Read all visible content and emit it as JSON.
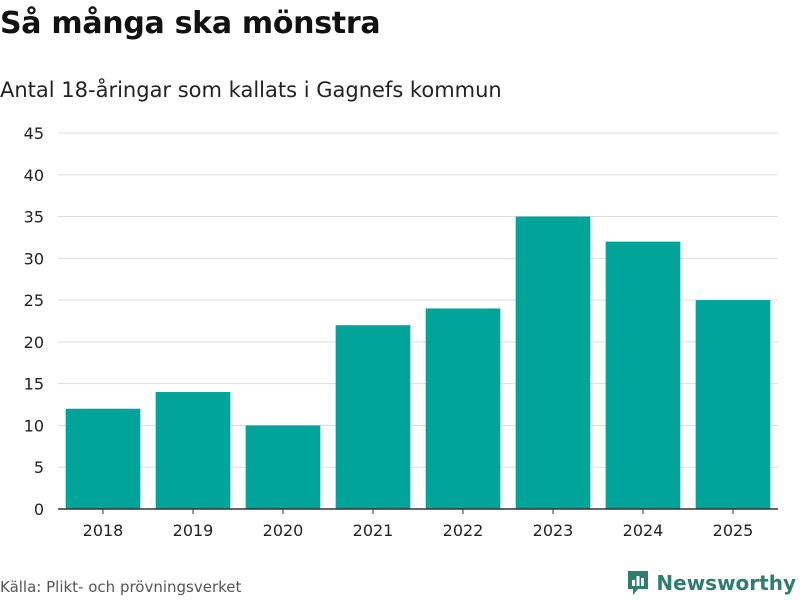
{
  "header": {
    "title": "Så många ska mönstra",
    "subtitle": "Antal 18-åringar som kallats i Gagnefs kommun"
  },
  "footer": {
    "source": "Källa: Plikt- och prövningsverket",
    "brand": "Newsworthy"
  },
  "colors": {
    "bar": "#00a499",
    "grid": "#dddddd",
    "axis": "#333333",
    "brand": "#2e7d6f"
  },
  "chart_data": {
    "type": "bar",
    "title": "Så många ska mönstra",
    "subtitle": "Antal 18-åringar som kallats i Gagnefs kommun",
    "xlabel": "",
    "ylabel": "",
    "categories": [
      "2018",
      "2019",
      "2020",
      "2021",
      "2022",
      "2023",
      "2024",
      "2025"
    ],
    "values": [
      12,
      14,
      10,
      22,
      24,
      35,
      32,
      25
    ],
    "ylim": [
      0,
      45
    ],
    "yticks": [
      0,
      5,
      10,
      15,
      20,
      25,
      30,
      35,
      40,
      45
    ],
    "grid": true,
    "legend": "none"
  }
}
